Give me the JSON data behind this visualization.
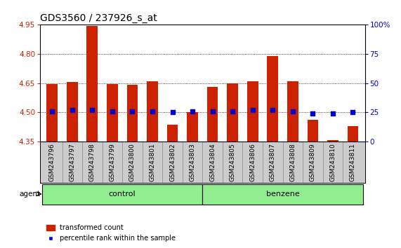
{
  "title": "GDS3560 / 237926_s_at",
  "samples": [
    "GSM243796",
    "GSM243797",
    "GSM243798",
    "GSM243799",
    "GSM243800",
    "GSM243801",
    "GSM243802",
    "GSM243803",
    "GSM243804",
    "GSM243805",
    "GSM243806",
    "GSM243807",
    "GSM243808",
    "GSM243809",
    "GSM243810",
    "GSM243811"
  ],
  "group_defs": [
    {
      "name": "control",
      "start": 0,
      "end": 7,
      "color": "#90EE90"
    },
    {
      "name": "benzene",
      "start": 8,
      "end": 15,
      "color": "#90EE90"
    }
  ],
  "bar_values": [
    4.645,
    4.655,
    4.945,
    4.645,
    4.64,
    4.66,
    4.435,
    4.5,
    4.63,
    4.65,
    4.66,
    4.79,
    4.66,
    4.46,
    4.355,
    4.43
  ],
  "percentile_values": [
    4.505,
    4.51,
    4.51,
    4.505,
    4.505,
    4.505,
    4.5,
    4.505,
    4.505,
    4.505,
    4.51,
    4.51,
    4.505,
    4.495,
    4.495,
    4.5
  ],
  "ymin": 4.35,
  "ymax": 4.95,
  "yticks": [
    4.35,
    4.5,
    4.65,
    4.8,
    4.95
  ],
  "right_yticks": [
    0,
    25,
    50,
    75,
    100
  ],
  "right_ytick_labels": [
    "0",
    "25",
    "50",
    "75",
    "100%"
  ],
  "bar_color": "#CC2200",
  "dot_color": "#0000CC",
  "bg_color": "#FFFFFF",
  "ylabel_color": "#CC2200",
  "right_ylabel_color": "#0000CC",
  "legend_bar_label": "transformed count",
  "legend_dot_label": "percentile rank within the sample",
  "bar_width": 0.55,
  "tick_area_color": "#CCCCCC",
  "title_fontsize": 10,
  "tick_fontsize": 6.5,
  "ytick_fontsize": 7.5
}
